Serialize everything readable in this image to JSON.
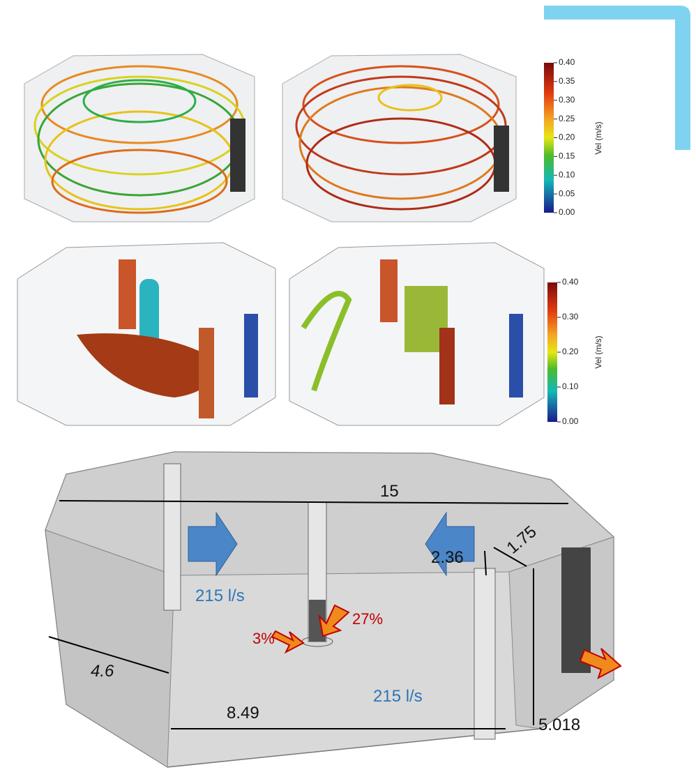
{
  "streamline_colorbar": {
    "title": "Vel (m/s)",
    "ticks": [
      "0.40",
      "0.35",
      "0.30",
      "0.25",
      "0.20",
      "0.15",
      "0.10",
      "0.05",
      "0.00"
    ]
  },
  "isosurface_colorbar": {
    "title": "Vel (m/s)",
    "ticks": [
      "0.40",
      "0.30",
      "0.20",
      "0.10",
      "0.00"
    ]
  },
  "diagram": {
    "length": "15",
    "inlet_offset": "1.75",
    "inlet_depth": "2.36",
    "side": "4.6",
    "width": "8.49",
    "height": "5.018",
    "inlet_left_flow": "215 l/s",
    "inlet_right_flow": "215 l/s",
    "upper_outlet_share": "27%",
    "lower_outlet_share": "3%"
  }
}
